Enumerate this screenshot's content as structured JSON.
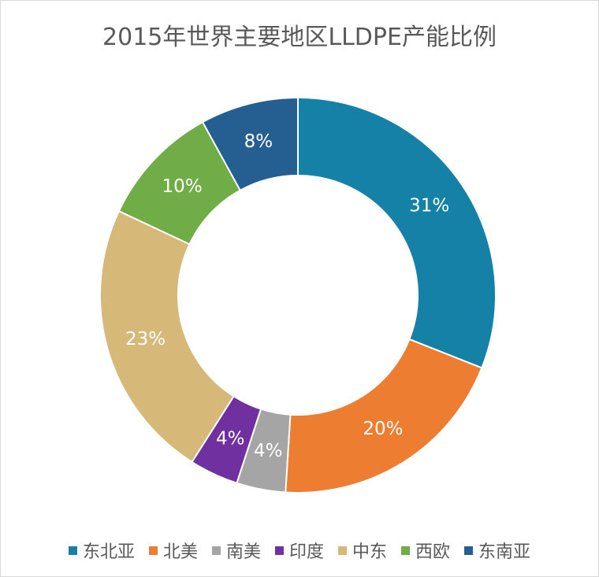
{
  "chart_data": {
    "type": "pie",
    "variant": "donut",
    "title": "2015年世界主要地区LLDPE产能比例",
    "categories": [
      "东北亚",
      "北美",
      "南美",
      "印度",
      "中东",
      "西欧",
      "东南亚"
    ],
    "values": [
      31,
      20,
      4,
      4,
      23,
      10,
      8
    ],
    "data_labels": [
      "31%",
      "20%",
      "4%",
      "4%",
      "23%",
      "10%",
      "8%"
    ],
    "colors": [
      "#1681A6",
      "#ED7D31",
      "#A5A5A5",
      "#7030A0",
      "#D6B879",
      "#70AD47",
      "#255E91"
    ],
    "legend": "bottom",
    "start_angle": "top, clockwise"
  }
}
